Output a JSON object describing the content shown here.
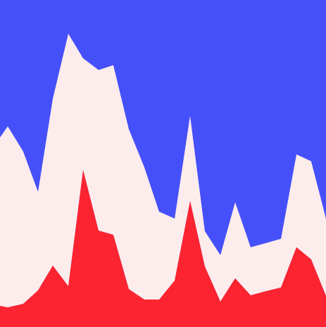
{
  "chart_data": {
    "type": "area",
    "stacked": true,
    "x": [
      0,
      11,
      33,
      54,
      75,
      97,
      118,
      140,
      161,
      183,
      205,
      226,
      248,
      270,
      291,
      313,
      334,
      356,
      378,
      399,
      421,
      442,
      463
    ],
    "xlim": [
      0,
      463
    ],
    "ylim": [
      0,
      100
    ],
    "grid": false,
    "series": [
      {
        "color": "#fc2430",
        "values": [
          6.5,
          6.0,
          7.1,
          11.2,
          18.8,
          12.5,
          48.1,
          29.5,
          28.2,
          11.6,
          8.4,
          8.4,
          14.2,
          38.6,
          18.5,
          7.8,
          14.9,
          9.7,
          11.0,
          12.1,
          24.4,
          20.7,
          9.5
        ]
      },
      {
        "color": "#fdecec",
        "values": [
          51.5,
          55.4,
          46.6,
          30.2,
          51.1,
          77.2,
          34.1,
          49.1,
          51.9,
          48.9,
          40.5,
          26.9,
          19.0,
          26.1,
          10.8,
          14.2,
          23.3,
          14.7,
          14.7,
          14.9,
          28.4,
          30.0,
          23.7
        ]
      },
      {
        "color": "#4650fa",
        "values": [
          42.0,
          38.6,
          46.3,
          58.6,
          30.1,
          10.3,
          17.8,
          21.4,
          19.9,
          39.5,
          51.1,
          64.7,
          66.8,
          35.3,
          70.7,
          78.0,
          61.8,
          75.6,
          74.3,
          73.0,
          47.2,
          49.3,
          66.8
        ]
      }
    ]
  }
}
